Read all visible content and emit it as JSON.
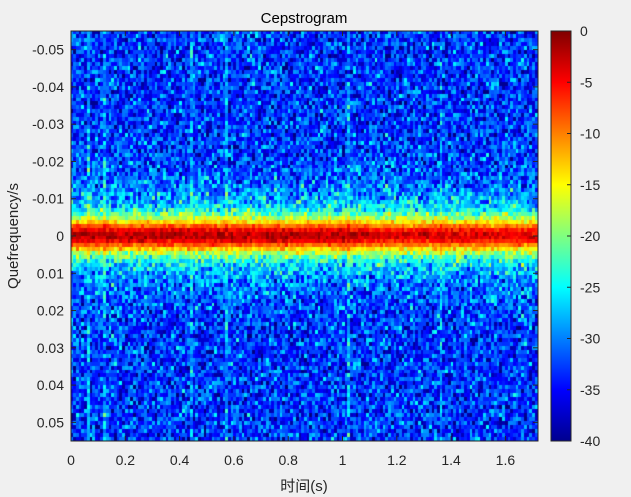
{
  "chart_data": {
    "type": "heatmap",
    "title": "Cepstrogram",
    "xlabel": "时间(s)",
    "ylabel": "Quefrequency/s",
    "xlim": [
      0,
      1.72
    ],
    "ylim": [
      -0.055,
      0.055
    ],
    "y_direction": "reversed",
    "x_ticks": [
      {
        "value": 0,
        "label": "0"
      },
      {
        "value": 0.2,
        "label": "0.2"
      },
      {
        "value": 0.4,
        "label": "0.4"
      },
      {
        "value": 0.6,
        "label": "0.6"
      },
      {
        "value": 0.8,
        "label": "0.8"
      },
      {
        "value": 1.0,
        "label": "1"
      },
      {
        "value": 1.2,
        "label": "1.2"
      },
      {
        "value": 1.4,
        "label": "1.4"
      },
      {
        "value": 1.6,
        "label": "1.6"
      }
    ],
    "y_ticks": [
      {
        "value": -0.05,
        "label": "-0.05"
      },
      {
        "value": -0.04,
        "label": "-0.04"
      },
      {
        "value": -0.03,
        "label": "-0.03"
      },
      {
        "value": -0.02,
        "label": "-0.02"
      },
      {
        "value": -0.01,
        "label": "-0.01"
      },
      {
        "value": 0,
        "label": "0"
      },
      {
        "value": 0.01,
        "label": "0.01"
      },
      {
        "value": 0.02,
        "label": "0.02"
      },
      {
        "value": 0.03,
        "label": "0.03"
      },
      {
        "value": 0.04,
        "label": "0.04"
      },
      {
        "value": 0.05,
        "label": "0.05"
      }
    ],
    "colormap": "jet",
    "color_range": [
      -40,
      0
    ],
    "colorbar_ticks": [
      {
        "value": 0,
        "label": "0"
      },
      {
        "value": -5,
        "label": "-5"
      },
      {
        "value": -10,
        "label": "-10"
      },
      {
        "value": -15,
        "label": "-15"
      },
      {
        "value": -20,
        "label": "-20"
      },
      {
        "value": -25,
        "label": "-25"
      },
      {
        "value": -30,
        "label": "-30"
      },
      {
        "value": -35,
        "label": "-35"
      },
      {
        "value": -40,
        "label": "-40"
      }
    ],
    "grid": {
      "time_bins": 172,
      "quefrency_bins": 104
    },
    "pattern": {
      "background_level_db": -33,
      "noise_spread_db": 5,
      "peak_level_db": -2,
      "peak_halfwidth_s": 0.0045,
      "band_halfwidth_s": 0.012,
      "band_level_db": -18,
      "bright_vertical_streaks_s": [
        0.06,
        0.12,
        0.44,
        0.57,
        1.02,
        1.36
      ],
      "peak_strengthens_after_s": 1.1
    },
    "grid_lines": false,
    "colorbar_position": "right"
  }
}
